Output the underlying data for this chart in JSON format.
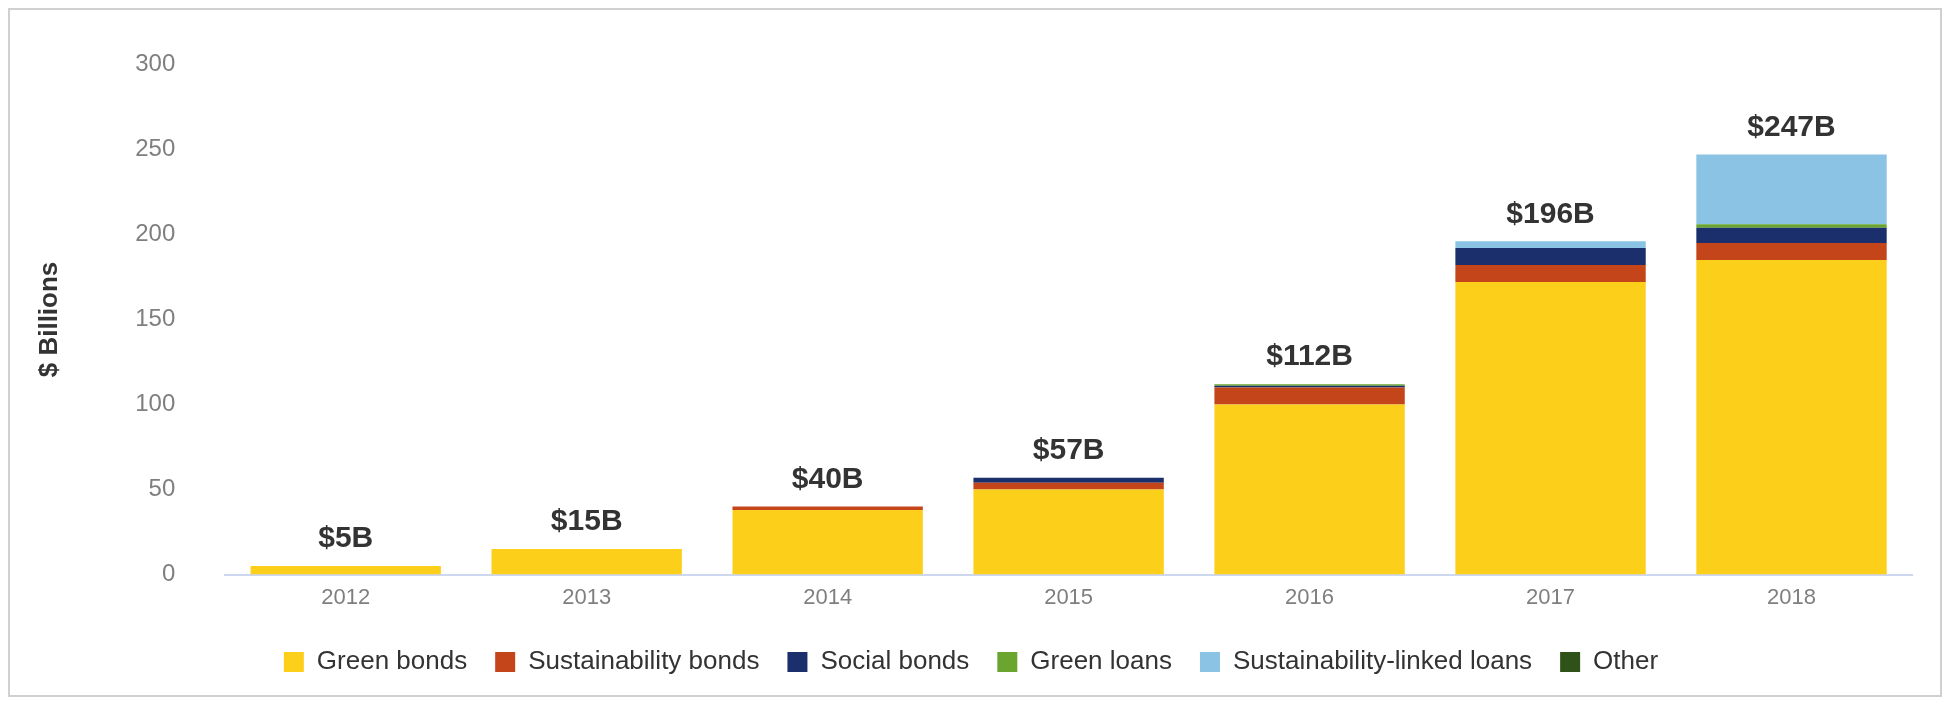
{
  "chart_data": {
    "type": "bar",
    "stacked": true,
    "ylabel": "$ Billions",
    "categories": [
      "2012",
      "2013",
      "2014",
      "2015",
      "2016",
      "2017",
      "2018"
    ],
    "series": [
      {
        "name": "Green bonds",
        "color": "#fccf1a",
        "values": [
          5,
          15,
          38,
          50,
          100,
          172,
          185
        ]
      },
      {
        "name": "Sustainability bonds",
        "color": "#c4451a",
        "values": [
          0,
          0,
          2,
          4,
          10,
          10,
          10
        ]
      },
      {
        "name": "Social bonds",
        "color": "#1a2f6b",
        "values": [
          0,
          0,
          0,
          3,
          1,
          10,
          9
        ]
      },
      {
        "name": "Green loans",
        "color": "#6aa62f",
        "values": [
          0,
          0,
          0,
          0,
          1,
          0,
          2
        ]
      },
      {
        "name": "Sustainability-linked loans",
        "color": "#8bc3e4",
        "values": [
          0,
          0,
          0,
          0,
          0,
          4,
          41
        ]
      },
      {
        "name": "Other",
        "color": "#2e5218",
        "values": [
          0,
          0,
          0,
          0,
          0,
          0,
          0
        ]
      }
    ],
    "totals": [
      "$5B",
      "$15B",
      "$40B",
      "$57B",
      "$112B",
      "$196B",
      "$247B"
    ],
    "ylim": [
      0,
      300
    ],
    "yticks": [
      0,
      50,
      100,
      150,
      200,
      250,
      300
    ],
    "legend": "bottom"
  }
}
